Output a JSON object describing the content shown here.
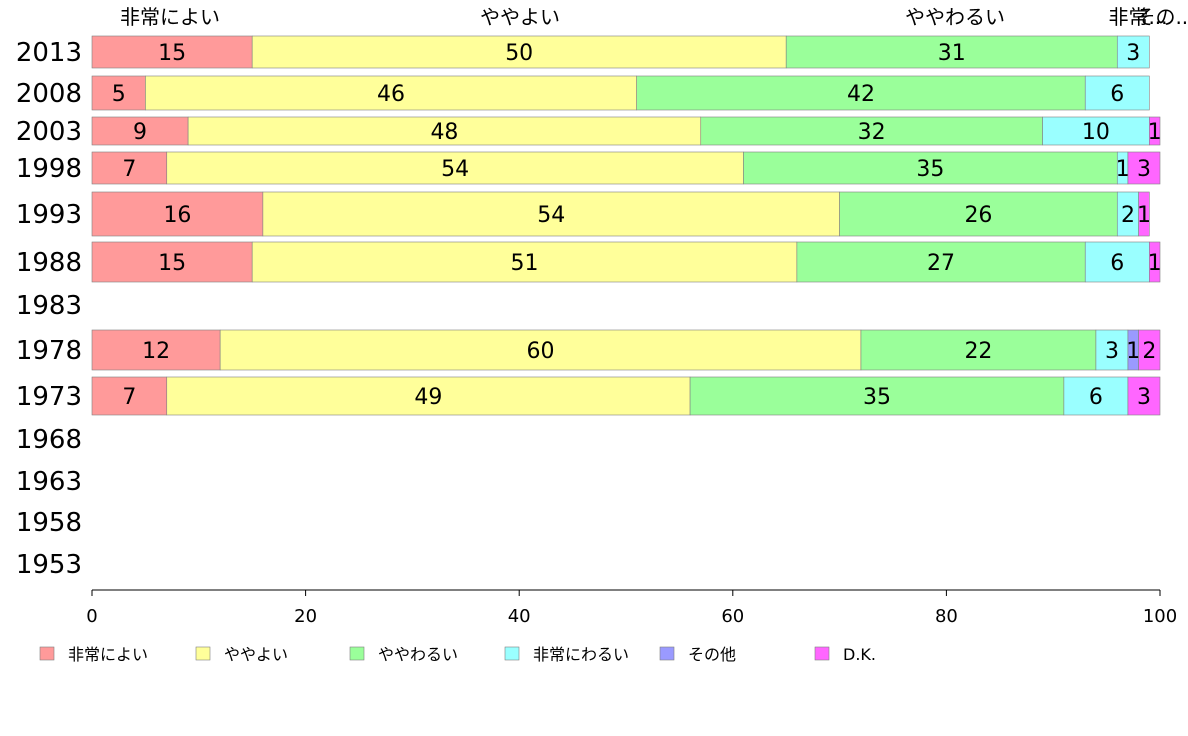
{
  "chart_data": {
    "type": "bar",
    "orientation": "horizontal-stacked-100",
    "categories": [
      "2013",
      "2008",
      "2003",
      "1998",
      "1993",
      "1988",
      "1983",
      "1978",
      "1973",
      "1968",
      "1963",
      "1958",
      "1953"
    ],
    "series": [
      {
        "name": "非常によい",
        "color": "#ff9a9a",
        "values": [
          15,
          5,
          9,
          7,
          16,
          15,
          null,
          12,
          7,
          null,
          null,
          null,
          null
        ]
      },
      {
        "name": "ややよい",
        "color": "#ffff9a",
        "values": [
          50,
          46,
          48,
          54,
          54,
          51,
          null,
          60,
          49,
          null,
          null,
          null,
          null
        ]
      },
      {
        "name": "ややわるい",
        "color": "#9aff9a",
        "values": [
          31,
          42,
          32,
          35,
          26,
          27,
          null,
          22,
          35,
          null,
          null,
          null,
          null
        ]
      },
      {
        "name": "非常にわるい",
        "color": "#9affff",
        "values": [
          3,
          6,
          10,
          1,
          2,
          6,
          null,
          3,
          6,
          null,
          null,
          null,
          null
        ]
      },
      {
        "name": "その他",
        "color": "#9a9aff",
        "values": [
          null,
          null,
          null,
          null,
          null,
          null,
          null,
          1,
          null,
          null,
          null,
          null,
          null
        ]
      },
      {
        "name": "D.K.",
        "color": "#ff66ff",
        "values": [
          null,
          null,
          1,
          3,
          1,
          1,
          null,
          2,
          3,
          null,
          null,
          null,
          null
        ]
      }
    ],
    "top_category_labels": [
      "非常によい",
      "ややよい",
      "ややわるい",
      "非常...",
      "その..."
    ],
    "xlim": [
      0,
      100
    ],
    "xticks": [
      0,
      20,
      40,
      60,
      80,
      100
    ],
    "legend_position": "bottom"
  }
}
